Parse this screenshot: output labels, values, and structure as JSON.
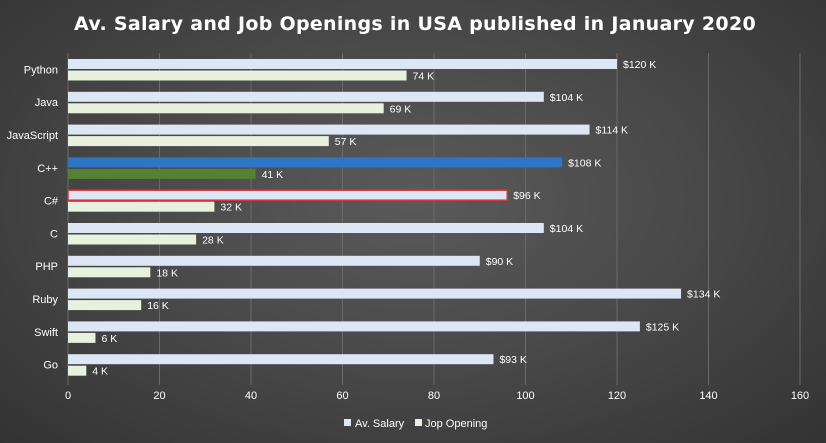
{
  "chart_data": {
    "type": "bar",
    "orientation": "horizontal",
    "title": "Av. Salary and Job Openings in USA published in January 2020",
    "categories": [
      "Python",
      "Java",
      "JavaScript",
      "C++",
      "C#",
      "C",
      "PHP",
      "Ruby",
      "Swift",
      "Go"
    ],
    "series": [
      {
        "name": "Av. Salary",
        "values": [
          120,
          104,
          114,
          108,
          96,
          104,
          90,
          134,
          125,
          93
        ],
        "labels": [
          "$120 K",
          "$104 K",
          "$114 K",
          "$108 K",
          "$96 K",
          "$104 K",
          "$90 K",
          "$134 K",
          "$125 K",
          "$93 K"
        ],
        "color": "#dde6f4",
        "highlight": {
          "3": "#2e75c6"
        }
      },
      {
        "name": "Jop Opening",
        "values": [
          74,
          69,
          57,
          41,
          32,
          28,
          18,
          16,
          6,
          4
        ],
        "labels": [
          "74 K",
          "69 K",
          "57 K",
          "41 K",
          "32 K",
          "28 K",
          "18 K",
          "16 K",
          "6 K",
          "4 K"
        ],
        "color": "#e7f1dd",
        "highlight": {
          "3": "#548235"
        }
      }
    ],
    "xlim": [
      0,
      160
    ],
    "xticks": [
      "0",
      "20",
      "40",
      "60",
      "80",
      "100",
      "120",
      "140",
      "160"
    ],
    "outlined_category": "C#",
    "outline_color": "#d9363e",
    "grid": true,
    "legend_position": "bottom"
  }
}
